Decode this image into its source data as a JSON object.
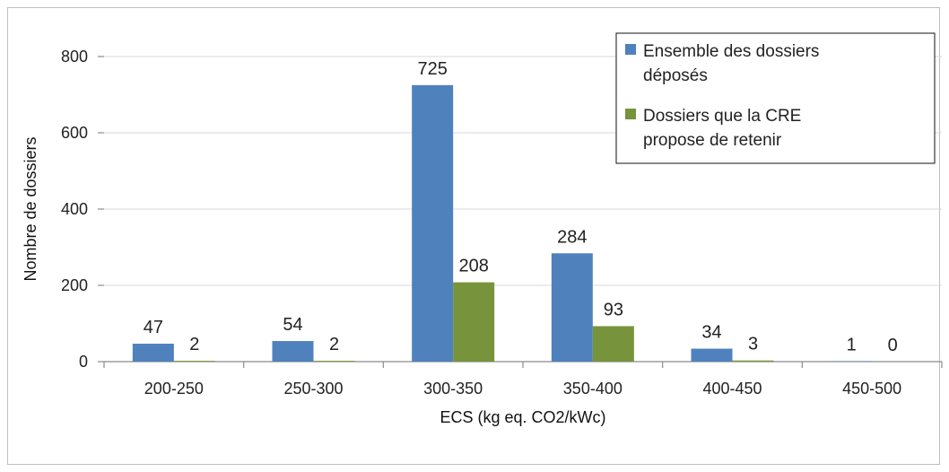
{
  "chart_data": {
    "type": "bar",
    "categories": [
      "200-250",
      "250-300",
      "300-350",
      "350-400",
      "400-450",
      "450-500"
    ],
    "series": [
      {
        "name": "Ensemble des dossiers déposés",
        "legend_lines": [
          "Ensemble des dossiers",
          "déposés"
        ],
        "color": "#4f81bd",
        "values": [
          47,
          54,
          725,
          284,
          34,
          1
        ]
      },
      {
        "name": "Dossiers que la CRE propose de retenir",
        "legend_lines": [
          "Dossiers que la CRE",
          "propose de retenir"
        ],
        "color": "#77933c",
        "values": [
          2,
          2,
          208,
          93,
          3,
          0
        ]
      }
    ],
    "xlabel": "ECS (kg eq. CO2/kWc)",
    "ylabel": "Nombre de dossiers",
    "ylim": [
      0,
      800
    ],
    "yticks": [
      0,
      200,
      400,
      600,
      800
    ],
    "grid": true,
    "legend_position": "top-right"
  }
}
